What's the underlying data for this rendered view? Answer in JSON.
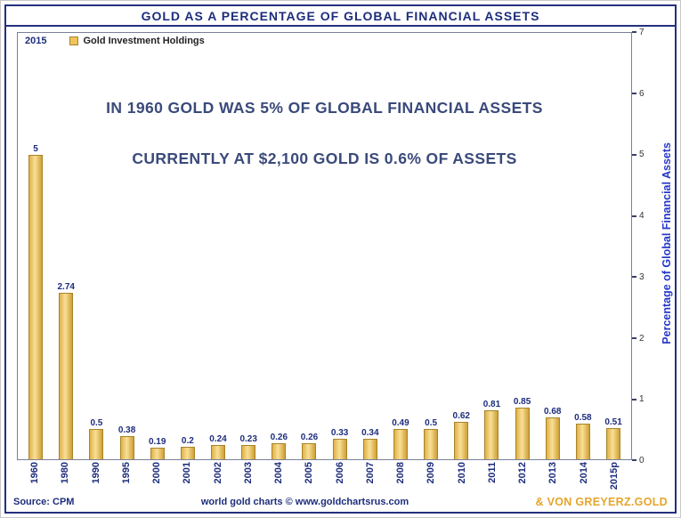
{
  "title": "GOLD AS A PERCENTAGE OF GLOBAL FINANCIAL ASSETS",
  "legend": {
    "year": "2015",
    "series_label": "Gold Investment Holdings"
  },
  "annotations": {
    "line1": "IN 1960 GOLD WAS 5% OF GLOBAL FINANCIAL ASSETS",
    "line2": "CURRENTLY AT $2,100 GOLD IS 0.6% OF ASSETS"
  },
  "footer": {
    "source": "Source: CPM",
    "credit": "world gold charts © www.goldchartsrus.com",
    "brand": "& VON GREYERZ.GOLD"
  },
  "chart_data": {
    "type": "bar",
    "title": "GOLD AS A PERCENTAGE OF GLOBAL FINANCIAL ASSETS",
    "categories": [
      "1960",
      "1980",
      "1990",
      "1995",
      "2000",
      "2001",
      "2002",
      "2003",
      "2004",
      "2005",
      "2006",
      "2007",
      "2008",
      "2009",
      "2010",
      "2011",
      "2012",
      "2013",
      "2014",
      "2015p"
    ],
    "values": [
      5,
      2.74,
      0.5,
      0.38,
      0.19,
      0.2,
      0.24,
      0.23,
      0.26,
      0.26,
      0.33,
      0.34,
      0.49,
      0.5,
      0.62,
      0.81,
      0.85,
      0.68,
      0.58,
      0.51
    ],
    "value_labels": [
      "5",
      "2.74",
      "0.5",
      "0.38",
      "0.19",
      "0.2",
      "0.24",
      "0.23",
      "0.26",
      "0.26",
      "0.33",
      "0.34",
      "0.49",
      "0.5",
      "0.62",
      "0.81",
      "0.85",
      "0.68",
      "0.58",
      "0.51"
    ],
    "xlabel": "",
    "ylabel": "Percentage of Global Financial Assets",
    "ylim": [
      0,
      7
    ],
    "yticks": [
      0,
      1,
      2,
      3,
      4,
      5,
      6,
      7
    ],
    "legend_entry": "Gold Investment Holdings",
    "legend_position": "top-left",
    "grid": false,
    "bar_color": "#EEC45C",
    "bar_border_color": "#A8842A",
    "accent_navy": "#1D2D7C",
    "accent_blue": "#2638C8",
    "accent_gold": "#E5A52C"
  }
}
